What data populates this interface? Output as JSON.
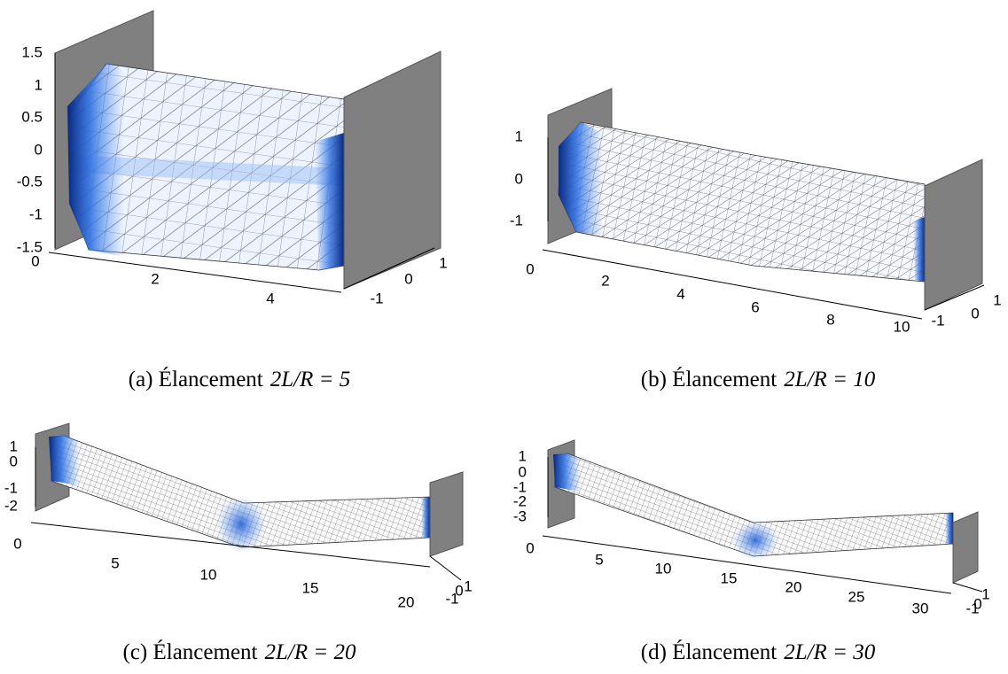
{
  "panels": [
    {
      "label": "(a) Élancement",
      "math": "2L/R = 5",
      "z_ticks": [
        1.5,
        1,
        0.5,
        0,
        -0.5,
        -1,
        -1.5
      ],
      "x_ticks": [
        0,
        2,
        4
      ],
      "y_ticks": [
        1,
        0,
        -1
      ]
    },
    {
      "label": "(b) Élancement",
      "math": "2L/R = 10",
      "z_ticks": [
        1,
        0,
        -1
      ],
      "x_ticks": [
        0,
        2,
        4,
        6,
        8,
        10
      ],
      "y_ticks": [
        -1,
        0,
        1
      ]
    },
    {
      "label": "(c) Élancement",
      "math": "2L/R = 20",
      "z_ticks": [
        1,
        0,
        -1,
        -2
      ],
      "x_ticks": [
        0,
        5,
        10,
        15,
        20
      ],
      "y_ticks": [
        -1,
        0,
        1
      ]
    },
    {
      "label": "(d) Élancement",
      "math": "2L/R = 30",
      "z_ticks": [
        1,
        0,
        -1,
        -2,
        -3
      ],
      "x_ticks": [
        0,
        5,
        10,
        15,
        20,
        25,
        30
      ],
      "y_ticks": [
        -1,
        0,
        1
      ]
    }
  ]
}
